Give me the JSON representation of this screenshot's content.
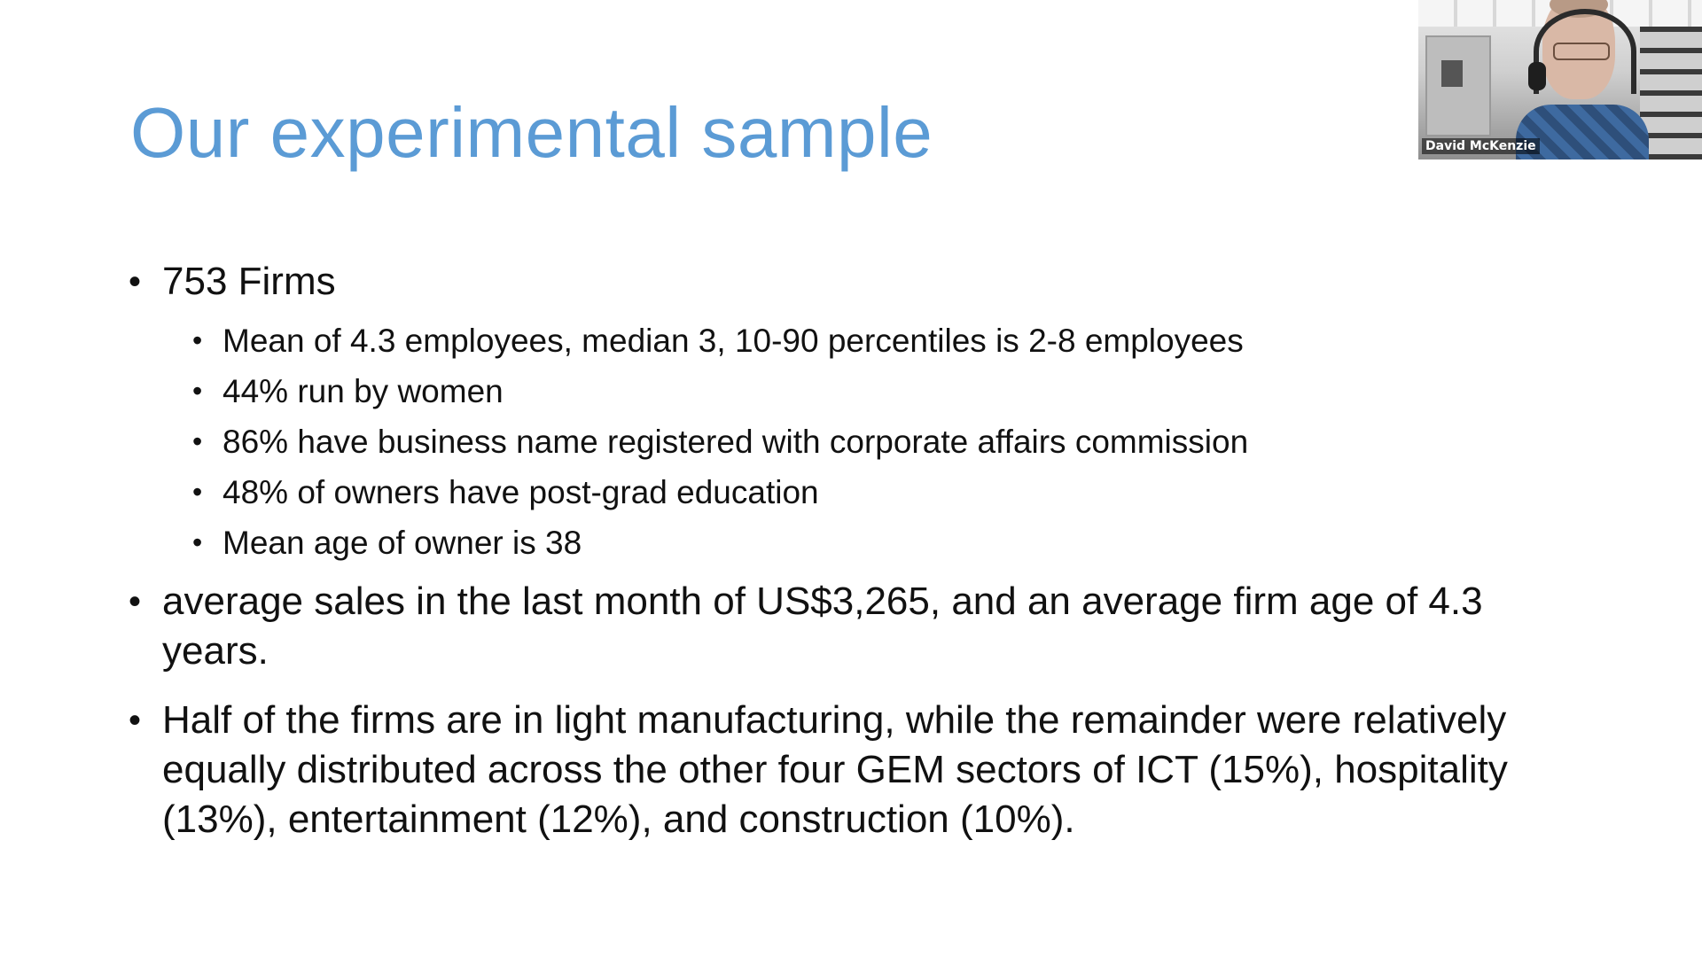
{
  "slide": {
    "title": "Our experimental sample",
    "bullets": [
      {
        "text": "753 Firms",
        "sub": [
          "Mean of 4.3 employees, median 3, 10-90 percentiles is 2-8 employees",
          "44% run by women",
          "86% have business name registered with corporate affairs commission",
          "48% of owners have post-grad education",
          "Mean age of owner is 38"
        ]
      },
      {
        "text": "average sales in the last month of US$3,265, and an average firm age of 4.3 years."
      },
      {
        "text": "Half of the firms are in light manufacturing, while the remainder were relatively equally distributed across the other four GEM sectors of ICT (15%), hospitality (13%), entertainment (12%), and construction (10%)."
      }
    ]
  },
  "video": {
    "participant_name": "David McKenzie"
  },
  "colors": {
    "title": "#5b9bd5",
    "text": "#111111",
    "background": "#ffffff"
  }
}
